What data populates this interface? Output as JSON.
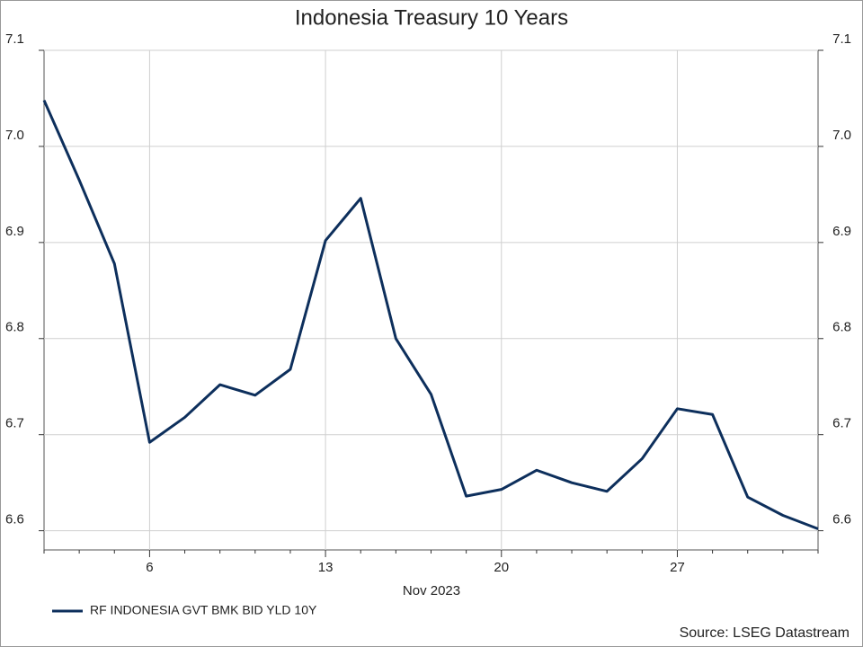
{
  "chart_data": {
    "type": "line",
    "title": "Indonesia Treasury 10 Years",
    "xlabel": "Nov 2023",
    "categories": [
      null,
      null,
      null,
      "6",
      null,
      null,
      null,
      null,
      "13",
      null,
      null,
      null,
      null,
      "20",
      null,
      null,
      null,
      null,
      "27",
      null,
      null,
      null,
      null
    ],
    "series": [
      {
        "name": "RF INDONESIA GVT BMK BID YLD 10Y",
        "color": "#0d2f5c",
        "values": [
          7.048,
          6.965,
          6.878,
          6.692,
          6.718,
          6.752,
          6.741,
          6.768,
          6.902,
          6.946,
          6.8,
          6.742,
          6.636,
          6.643,
          6.663,
          6.65,
          6.641,
          6.675,
          6.727,
          6.721,
          6.635,
          6.616,
          6.602
        ]
      }
    ],
    "ylim": [
      6.58,
      7.1
    ],
    "yticks": [
      6.6,
      6.7,
      6.8,
      6.9,
      {
        "value": 7,
        "label": "7.0"
      },
      7.1
    ],
    "grid": true,
    "source": "Source: LSEG Datastream"
  }
}
